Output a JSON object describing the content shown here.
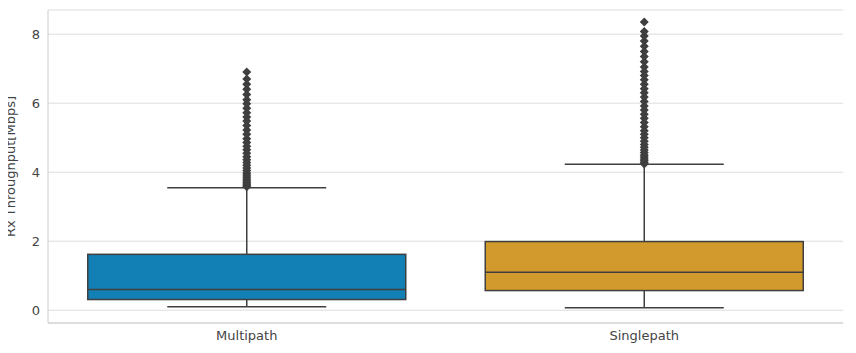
{
  "chart_data": {
    "type": "box",
    "y_label": "Rx Throughput[Mbps]",
    "categories": [
      "Multipath",
      "Singlepath"
    ],
    "colors": [
      "#1380b5",
      "#d29a2c"
    ],
    "whisker_low": [
      0.1,
      0.07
    ],
    "q1": [
      0.31,
      0.57
    ],
    "median": [
      0.6,
      1.1
    ],
    "q3": [
      1.62,
      1.99
    ],
    "whisker_high": [
      3.55,
      4.23
    ],
    "outliers": [
      [
        3.58,
        3.62,
        3.66,
        3.7,
        3.75,
        3.8,
        3.86,
        3.92,
        3.98,
        4.05,
        4.12,
        4.2,
        4.28,
        4.36,
        4.45,
        4.55,
        4.65,
        4.75,
        4.86,
        4.97,
        5.1,
        5.22,
        5.35,
        5.48,
        5.6,
        5.72,
        5.85,
        5.98,
        6.1,
        6.25,
        6.4,
        6.55,
        6.7,
        6.9
      ],
      [
        4.24,
        4.28,
        4.33,
        4.38,
        4.44,
        4.5,
        4.57,
        4.64,
        4.72,
        4.8,
        4.9,
        5.0,
        5.1,
        5.2,
        5.32,
        5.44,
        5.56,
        5.68,
        5.8,
        5.92,
        6.05,
        6.18,
        6.3,
        6.42,
        6.55,
        6.68,
        6.8,
        6.92,
        7.05,
        7.2,
        7.35,
        7.5,
        7.65,
        7.8,
        7.95,
        8.08,
        8.35
      ]
    ],
    "ylim": [
      -0.37,
      8.7
    ],
    "yticks": [
      0,
      2,
      4,
      6,
      8
    ],
    "grid": true
  }
}
